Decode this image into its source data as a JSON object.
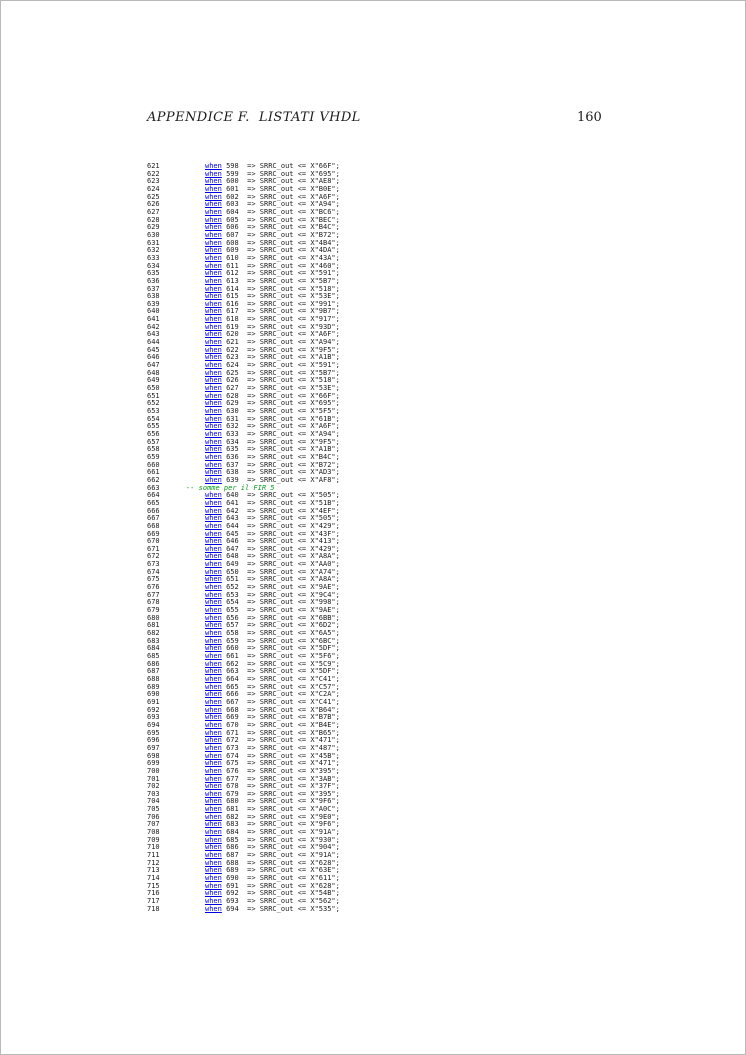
{
  "header": {
    "title": "APPENDICE F.  LISTATI VHDL",
    "page_number": "160"
  },
  "colors": {
    "text": "#1c1c1c",
    "keyword_blue": "#0000e8",
    "comment_green": "#0a9b20"
  },
  "listing": {
    "keyword": "when",
    "arrow_op": "=>",
    "signal": "SRRC_out",
    "assign_op": "<=",
    "hex_prefix": "X",
    "comment": {
      "line_number": "663",
      "text": "-- somme per il FIR 5"
    },
    "rows": [
      [
        621,
        "598",
        "66F"
      ],
      [
        622,
        "599",
        "695"
      ],
      [
        623,
        "600",
        "AE8"
      ],
      [
        624,
        "601",
        "B0E"
      ],
      [
        625,
        "602",
        "A6F"
      ],
      [
        626,
        "603",
        "A94"
      ],
      [
        627,
        "604",
        "BC6"
      ],
      [
        628,
        "605",
        "BEC"
      ],
      [
        629,
        "606",
        "B4C"
      ],
      [
        630,
        "607",
        "B72"
      ],
      [
        631,
        "608",
        "4B4"
      ],
      [
        632,
        "609",
        "4DA"
      ],
      [
        633,
        "610",
        "43A"
      ],
      [
        634,
        "611",
        "460"
      ],
      [
        635,
        "612",
        "591"
      ],
      [
        636,
        "613",
        "5B7"
      ],
      [
        637,
        "614",
        "518"
      ],
      [
        638,
        "615",
        "53E"
      ],
      [
        639,
        "616",
        "991"
      ],
      [
        640,
        "617",
        "9B7"
      ],
      [
        641,
        "618",
        "917"
      ],
      [
        642,
        "619",
        "93D"
      ],
      [
        643,
        "620",
        "A6F"
      ],
      [
        644,
        "621",
        "A94"
      ],
      [
        645,
        "622",
        "9F5"
      ],
      [
        646,
        "623",
        "A1B"
      ],
      [
        647,
        "624",
        "591"
      ],
      [
        648,
        "625",
        "5B7"
      ],
      [
        649,
        "626",
        "518"
      ],
      [
        650,
        "627",
        "53E"
      ],
      [
        651,
        "628",
        "66F"
      ],
      [
        652,
        "629",
        "695"
      ],
      [
        653,
        "630",
        "5F5"
      ],
      [
        654,
        "631",
        "61B"
      ],
      [
        655,
        "632",
        "A6F"
      ],
      [
        656,
        "633",
        "A94"
      ],
      [
        657,
        "634",
        "9F5"
      ],
      [
        658,
        "635",
        "A1B"
      ],
      [
        659,
        "636",
        "B4C"
      ],
      [
        660,
        "637",
        "B72"
      ],
      [
        661,
        "638",
        "AD3"
      ],
      [
        662,
        "639",
        "AF8"
      ],
      [
        663,
        null,
        null
      ],
      [
        664,
        "640",
        "505"
      ],
      [
        665,
        "641",
        "51B"
      ],
      [
        666,
        "642",
        "4EF"
      ],
      [
        667,
        "643",
        "505"
      ],
      [
        668,
        "644",
        "429"
      ],
      [
        669,
        "645",
        "43F"
      ],
      [
        670,
        "646",
        "413"
      ],
      [
        671,
        "647",
        "429"
      ],
      [
        672,
        "648",
        "A8A"
      ],
      [
        673,
        "649",
        "AA0"
      ],
      [
        674,
        "650",
        "A74"
      ],
      [
        675,
        "651",
        "A8A"
      ],
      [
        676,
        "652",
        "9AE"
      ],
      [
        677,
        "653",
        "9C4"
      ],
      [
        678,
        "654",
        "998"
      ],
      [
        679,
        "655",
        "9AE"
      ],
      [
        680,
        "656",
        "6BB"
      ],
      [
        681,
        "657",
        "6D2"
      ],
      [
        682,
        "658",
        "6A5"
      ],
      [
        683,
        "659",
        "6BC"
      ],
      [
        684,
        "660",
        "5DF"
      ],
      [
        685,
        "661",
        "5F6"
      ],
      [
        686,
        "662",
        "5C9"
      ],
      [
        687,
        "663",
        "5DF"
      ],
      [
        688,
        "664",
        "C41"
      ],
      [
        689,
        "665",
        "C57"
      ],
      [
        690,
        "666",
        "C2A"
      ],
      [
        691,
        "667",
        "C41"
      ],
      [
        692,
        "668",
        "B64"
      ],
      [
        693,
        "669",
        "B7B"
      ],
      [
        694,
        "670",
        "B4E"
      ],
      [
        695,
        "671",
        "B65"
      ],
      [
        696,
        "672",
        "471"
      ],
      [
        697,
        "673",
        "487"
      ],
      [
        698,
        "674",
        "45B"
      ],
      [
        699,
        "675",
        "471"
      ],
      [
        700,
        "676",
        "395"
      ],
      [
        701,
        "677",
        "3AB"
      ],
      [
        702,
        "678",
        "37F"
      ],
      [
        703,
        "679",
        "395"
      ],
      [
        704,
        "680",
        "9F6"
      ],
      [
        705,
        "681",
        "A0C"
      ],
      [
        706,
        "682",
        "9E0"
      ],
      [
        707,
        "683",
        "9F6"
      ],
      [
        708,
        "684",
        "91A"
      ],
      [
        709,
        "685",
        "930"
      ],
      [
        710,
        "686",
        "904"
      ],
      [
        711,
        "687",
        "91A"
      ],
      [
        712,
        "688",
        "628"
      ],
      [
        713,
        "689",
        "63E"
      ],
      [
        714,
        "690",
        "611"
      ],
      [
        715,
        "691",
        "628"
      ],
      [
        716,
        "692",
        "54B"
      ],
      [
        717,
        "693",
        "562"
      ],
      [
        718,
        "694",
        "535"
      ]
    ]
  }
}
